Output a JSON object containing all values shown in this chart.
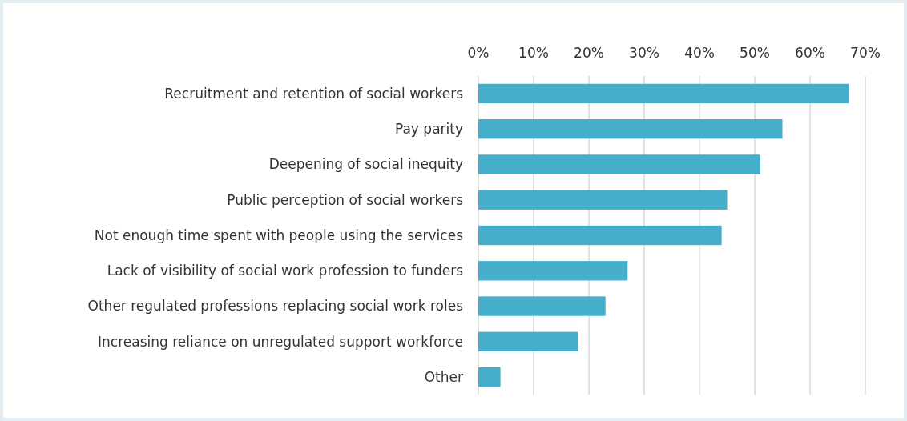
{
  "chart_data": {
    "type": "bar",
    "orientation": "horizontal",
    "categories": [
      "Recruitment and retention of social workers",
      "Pay parity",
      "Deepening of social inequity",
      "Public perception of social workers",
      "Not enough time spent with people using the services",
      "Lack of visibility of social work profession to funders",
      "Other regulated professions replacing social work roles",
      "Increasing reliance on unregulated support workforce",
      "Other"
    ],
    "values": [
      67,
      55,
      51,
      45,
      44,
      27,
      23,
      18,
      4
    ],
    "color": "#45afcb",
    "xlim": [
      0,
      70
    ],
    "xticks": [
      {
        "value": 0,
        "label": "0%"
      },
      {
        "value": 10,
        "label": "10%"
      },
      {
        "value": 20,
        "label": "20%"
      },
      {
        "value": 30,
        "label": "30%"
      },
      {
        "value": 40,
        "label": "40%"
      },
      {
        "value": 50,
        "label": "50%"
      },
      {
        "value": 60,
        "label": "60%"
      },
      {
        "value": 70,
        "label": "70%"
      }
    ],
    "grid": "x"
  }
}
